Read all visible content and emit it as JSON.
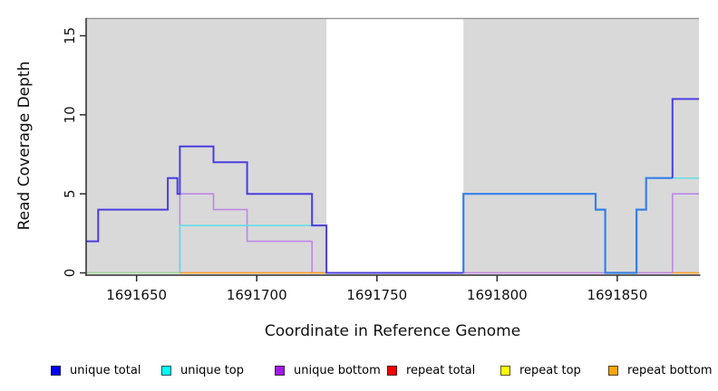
{
  "plot": {
    "background": "#FFFFFF",
    "region_fill": "#D9D9D9",
    "top_line_color": "#949494",
    "axis_color": "#2B2B2B",
    "tick_label_color": "#111111"
  },
  "y_axis": {
    "label": "Read Coverage Depth",
    "ticks": [
      0,
      5,
      10,
      15
    ]
  },
  "x_axis": {
    "label": "Coordinate in Reference Genome",
    "ticks": [
      1691650,
      1691700,
      1691750,
      1691800,
      1691850
    ]
  },
  "chart_data": {
    "type": "line",
    "subtype": "step-coverage",
    "x_range": [
      1691629,
      1691884
    ],
    "y_range": [
      0,
      16.15
    ],
    "grid": false,
    "shaded_regions": [
      [
        1691629,
        1691729
      ],
      [
        1691786,
        1691884
      ]
    ],
    "series": [
      {
        "name": "repeat total",
        "color": "#E25566",
        "width": 1.2,
        "points": [
          [
            1691629,
            0
          ],
          [
            1691884,
            0
          ]
        ]
      },
      {
        "name": "zero line blend (unique top + repeat top)",
        "color": "#99DBA0",
        "width": 1.4,
        "points": [
          [
            1691629,
            0
          ],
          [
            1691668,
            0
          ]
        ]
      },
      {
        "name": "unique bottom",
        "color": "#BD87E7",
        "width": 1.6,
        "points": [
          [
            1691668,
            0
          ],
          [
            1691668,
            5
          ],
          [
            1691682,
            5
          ],
          [
            1691682,
            4
          ],
          [
            1691696,
            4
          ],
          [
            1691696,
            2
          ],
          [
            1691723,
            2
          ],
          [
            1691723,
            0
          ],
          [
            1691873,
            0
          ],
          [
            1691873,
            5
          ],
          [
            1691884,
            5
          ]
        ]
      },
      {
        "name": "repeat bottom (left)",
        "color": "#FFA01E",
        "width": 1.6,
        "points": [
          [
            1691668,
            0
          ],
          [
            1691729,
            0
          ]
        ]
      },
      {
        "name": "repeat bottom (right)",
        "color": "#FFA01E",
        "width": 1.6,
        "points": [
          [
            1691873,
            0
          ],
          [
            1691884,
            0
          ]
        ]
      },
      {
        "name": "unique top",
        "color": "#5CDFE8",
        "width": 1.5,
        "points": [
          [
            1691668,
            0
          ],
          [
            1691668,
            3
          ],
          [
            1691729,
            3
          ],
          [
            1691729,
            0
          ],
          [
            1691786,
            0
          ],
          [
            1691786,
            5
          ],
          [
            1691841,
            5
          ],
          [
            1691841,
            4
          ],
          [
            1691845,
            4
          ],
          [
            1691845,
            0
          ],
          [
            1691858,
            0
          ],
          [
            1691858,
            4
          ],
          [
            1691862,
            4
          ],
          [
            1691862,
            6
          ],
          [
            1691884,
            6
          ]
        ]
      },
      {
        "name": "unique total",
        "color": "#4A3EE0",
        "width": 2,
        "points": [
          [
            1691629,
            2
          ],
          [
            1691634,
            2
          ],
          [
            1691634,
            4
          ],
          [
            1691663,
            4
          ],
          [
            1691663,
            6
          ],
          [
            1691667,
            6
          ],
          [
            1691667,
            5
          ],
          [
            1691668,
            5
          ],
          [
            1691668,
            8
          ],
          [
            1691682,
            8
          ],
          [
            1691682,
            7
          ],
          [
            1691696,
            7
          ],
          [
            1691696,
            5
          ],
          [
            1691723,
            5
          ],
          [
            1691723,
            3
          ],
          [
            1691729,
            3
          ],
          [
            1691729,
            0
          ],
          [
            1691786,
            0
          ]
        ]
      },
      {
        "name": "unique total (overlapping unique top)",
        "color": "#3580E8",
        "width": 2.2,
        "points": [
          [
            1691786,
            0
          ],
          [
            1691786,
            5
          ],
          [
            1691841,
            5
          ],
          [
            1691841,
            4
          ],
          [
            1691845,
            4
          ],
          [
            1691845,
            0
          ],
          [
            1691858,
            0
          ],
          [
            1691858,
            4
          ],
          [
            1691862,
            4
          ],
          [
            1691862,
            6
          ],
          [
            1691873,
            6
          ]
        ]
      },
      {
        "name": "unique total (high right)",
        "color": "#4A3EE0",
        "width": 2,
        "points": [
          [
            1691873,
            6
          ],
          [
            1691873,
            11
          ],
          [
            1691884,
            11
          ]
        ]
      }
    ]
  },
  "legend": {
    "items": [
      {
        "label": "unique total",
        "color": "#0000F5"
      },
      {
        "label": "unique top",
        "color": "#00FFFF"
      },
      {
        "label": "unique bottom",
        "color": "#A21AE8"
      },
      {
        "label": "repeat total",
        "color": "#F50000"
      },
      {
        "label": "repeat top",
        "color": "#FFFF00"
      },
      {
        "label": "repeat bottom",
        "color": "#FFA500"
      }
    ]
  }
}
